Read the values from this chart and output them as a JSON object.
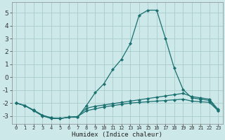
{
  "xlabel": "Humidex (Indice chaleur)",
  "bg_color": "#cce8e8",
  "grid_color": "#aacccc",
  "line_color": "#1a7070",
  "xlim": [
    -0.5,
    23.5
  ],
  "ylim": [
    -3.6,
    5.8
  ],
  "yticks": [
    -3,
    -2,
    -1,
    0,
    1,
    2,
    3,
    4,
    5
  ],
  "xtick_labels": [
    "0",
    "1",
    "2",
    "3",
    "4",
    "5",
    "6",
    "7",
    "8",
    "9",
    "10",
    "11",
    "12",
    "13",
    "14",
    "15",
    "16",
    "17",
    "18",
    "19",
    "20",
    "21",
    "22",
    "23"
  ],
  "xtick_positions": [
    0,
    1,
    2,
    3,
    4,
    5,
    6,
    7,
    8,
    9,
    10,
    11,
    12,
    13,
    14,
    15,
    16,
    17,
    18,
    19,
    20,
    21,
    22,
    23
  ],
  "series": [
    {
      "x": [
        0,
        1,
        2,
        3,
        4,
        5,
        6,
        7,
        8,
        9,
        10,
        11,
        12,
        13,
        14,
        15,
        16,
        17,
        18,
        19,
        20,
        21,
        22,
        23
      ],
      "y": [
        -2.0,
        -2.2,
        -2.6,
        -3.0,
        -3.2,
        -3.2,
        -3.1,
        -3.1,
        -2.2,
        -1.2,
        -0.5,
        0.6,
        1.4,
        2.6,
        4.8,
        5.2,
        5.2,
        3.0,
        0.7,
        -0.95,
        -1.6,
        -1.7,
        -1.8,
        -2.6
      ]
    },
    {
      "x": [
        0,
        1,
        2,
        3,
        4,
        5,
        6,
        7,
        8,
        9,
        10,
        11,
        12,
        13,
        14,
        15,
        16,
        17,
        18,
        19,
        20,
        21,
        22,
        23
      ],
      "y": [
        -2.0,
        -2.2,
        -2.55,
        -2.95,
        -3.15,
        -3.2,
        -3.1,
        -3.05,
        -2.4,
        -2.25,
        -2.15,
        -2.05,
        -1.95,
        -1.85,
        -1.75,
        -1.65,
        -1.55,
        -1.45,
        -1.35,
        -1.25,
        -1.5,
        -1.6,
        -1.7,
        -2.5
      ]
    },
    {
      "x": [
        0,
        1,
        2,
        3,
        4,
        5,
        6,
        7,
        8,
        9,
        10,
        11,
        12,
        13,
        14,
        15,
        16,
        17,
        18,
        19,
        20,
        21,
        22,
        23
      ],
      "y": [
        -2.0,
        -2.2,
        -2.55,
        -2.95,
        -3.15,
        -3.2,
        -3.1,
        -3.05,
        -2.6,
        -2.45,
        -2.3,
        -2.2,
        -2.1,
        -2.0,
        -1.95,
        -1.9,
        -1.85,
        -1.8,
        -1.75,
        -1.7,
        -1.85,
        -1.9,
        -1.95,
        -2.6
      ]
    }
  ]
}
